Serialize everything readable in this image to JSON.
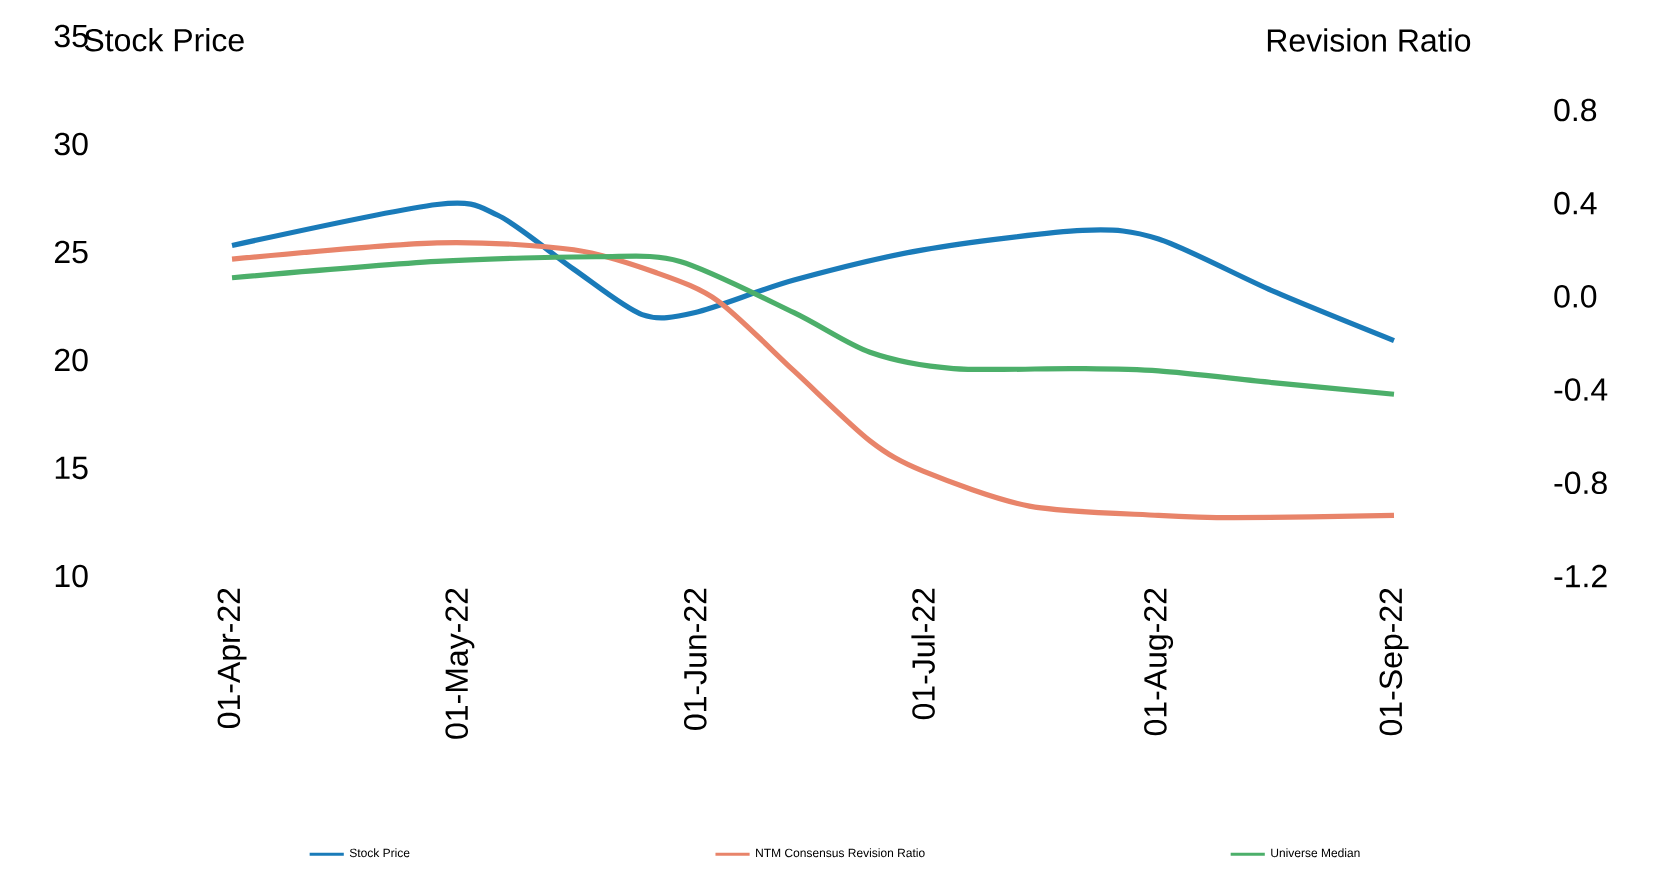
{
  "chart_data": {
    "type": "line",
    "ylabel": "Stock Price",
    "y2label": "Revision Ratio",
    "xlim": [
      "2022-04-01",
      "2022-09-01"
    ],
    "xticks": [
      {
        "value": "2022-04-01",
        "label": "01-Apr-22"
      },
      {
        "value": "2022-05-01",
        "label": "01-May-22"
      },
      {
        "value": "2022-06-01",
        "label": "01-Jun-22"
      },
      {
        "value": "2022-07-01",
        "label": "01-Jul-22"
      },
      {
        "value": "2022-08-01",
        "label": "01-Aug-22"
      },
      {
        "value": "2022-09-01",
        "label": "01-Sep-22"
      }
    ],
    "ylim": [
      10,
      35
    ],
    "yticks": [
      10,
      15,
      20,
      25,
      30,
      35
    ],
    "y2lim": [
      -1.2,
      0.8
    ],
    "y2ticks": [
      -1.2,
      -0.8,
      -0.4,
      {
        "value": 0,
        "label": "0.0"
      },
      0.4,
      0.8
    ],
    "legend": "bottom",
    "series": [
      {
        "name": "Stock Price",
        "color": "#1a7bb9",
        "x": [
          "2022-04-01",
          "2022-04-28",
          "2022-05-06",
          "2022-05-16",
          "2022-05-25",
          "2022-06-01",
          "2022-06-14",
          "2022-07-01",
          "2022-07-22",
          "2022-08-01",
          "2022-08-16",
          "2022-09-01"
        ],
        "values": [
          25.3,
          27.2,
          26.7,
          24.2,
          22.1,
          22.2,
          23.7,
          25.1,
          26.0,
          25.6,
          23.2,
          20.9
        ]
      },
      {
        "name": "NTM Consensus Revision Ratio",
        "color": "#e8846a",
        "axis": "y2",
        "x": [
          "2022-04-01",
          "2022-04-28",
          "2022-05-16",
          "2022-05-27",
          "2022-06-04",
          "2022-06-14",
          "2022-06-24",
          "2022-07-01",
          "2022-07-15",
          "2022-08-01",
          "2022-08-11",
          "2022-09-01"
        ],
        "values": [
          0.16,
          0.23,
          0.2,
          0.1,
          -0.02,
          -0.32,
          -0.62,
          -0.75,
          -0.9,
          -0.94,
          -0.95,
          -0.94
        ]
      },
      {
        "name": "Universe Median",
        "color": "#4caf6a",
        "axis": "y2",
        "x": [
          "2022-04-01",
          "2022-04-28",
          "2022-05-19",
          "2022-05-30",
          "2022-06-14",
          "2022-06-24",
          "2022-07-05",
          "2022-07-21",
          "2022-08-01",
          "2022-08-16",
          "2022-09-01"
        ],
        "values": [
          0.08,
          0.15,
          0.17,
          0.15,
          -0.07,
          -0.24,
          -0.31,
          -0.31,
          -0.32,
          -0.37,
          -0.42
        ]
      }
    ]
  }
}
